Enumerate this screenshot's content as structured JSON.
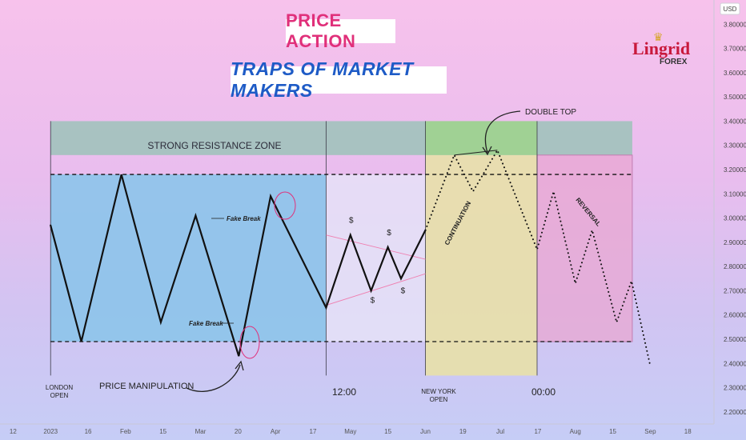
{
  "header": {
    "title": "PRICE ACTION",
    "subtitle": "TRAPS OF MARKET MAKERS"
  },
  "logo": {
    "name": "Lingrid",
    "sub": "FOREX"
  },
  "colors": {
    "resistance_zone": "#9cc3b8",
    "london_session": "#8cc4ea",
    "lunch_session": "#e6e4f8",
    "ny_session": "#e8e0a8",
    "ny_top": "#9fd48c",
    "reversal_zone": "#e8a7d2",
    "trap_circle": "#e0307a",
    "wedge": "#ef7fb0"
  },
  "annotations": {
    "resistance_zone": "STRONG RESISTANCE ZONE",
    "fake_break_top": "Fake Break",
    "fake_break_bottom": "Fake Break",
    "double_top": "DOUBLE TOP",
    "continuation": "CONTINUATION",
    "reversal": "REVERSAL",
    "price_manipulation": "PRICE MANIPULATION",
    "dollar": "$"
  },
  "sessions": {
    "london_open": [
      "LONDON",
      "OPEN"
    ],
    "midday": "12:00",
    "new_york_open": [
      "NEW YORK",
      "OPEN"
    ],
    "midnight": "00:00"
  },
  "chart_data": {
    "type": "line",
    "y_unit": "USD",
    "ylim": [
      2.15,
      3.9
    ],
    "y_ticks": [
      3.8,
      3.7,
      3.6,
      3.5,
      3.4,
      3.3,
      3.2,
      3.1,
      3.0,
      2.9,
      2.8,
      2.7,
      2.6,
      2.5,
      2.4,
      2.3,
      2.2
    ],
    "y_tick_labels": [
      "3.80000",
      "3.70000",
      "3.60000",
      "3.50000",
      "3.40000",
      "3.30000",
      "3.20000",
      "3.10000",
      "3.00000",
      "2.90000",
      "2.80000",
      "2.70000",
      "2.60000",
      "2.50000",
      "2.40000",
      "2.30000",
      "2.20000"
    ],
    "x_ticks": [
      {
        "label": "12",
        "t": 0
      },
      {
        "label": "2023",
        "t": 1
      },
      {
        "label": "16",
        "t": 2
      },
      {
        "label": "Feb",
        "t": 3
      },
      {
        "label": "15",
        "t": 4
      },
      {
        "label": "Mar",
        "t": 5
      },
      {
        "label": "20",
        "t": 6
      },
      {
        "label": "Apr",
        "t": 7
      },
      {
        "label": "17",
        "t": 8
      },
      {
        "label": "May",
        "t": 9
      },
      {
        "label": "15",
        "t": 10
      },
      {
        "label": "Jun",
        "t": 11
      },
      {
        "label": "19",
        "t": 12
      },
      {
        "label": "Jul",
        "t": 13
      },
      {
        "label": "17",
        "t": 14
      },
      {
        "label": "Aug",
        "t": 15
      },
      {
        "label": "15",
        "t": 16
      },
      {
        "label": "Sep",
        "t": 17
      },
      {
        "label": "18",
        "t": 18
      }
    ],
    "t_range": [
      -0.35,
      18.7
    ],
    "resistance_zone": {
      "t": [
        1.0,
        16.52
      ],
      "y": [
        3.26,
        3.4
      ]
    },
    "sessions": [
      {
        "t": [
          1.0,
          8.35
        ],
        "y": [
          2.49,
          3.18
        ]
      },
      {
        "t": [
          8.35,
          11.0
        ],
        "y": [
          2.49,
          3.18
        ]
      },
      {
        "t": [
          11.0,
          13.98
        ],
        "y": [
          2.35,
          3.26
        ]
      },
      {
        "t": [
          11.0,
          13.98
        ],
        "y": [
          3.26,
          3.4
        ]
      },
      {
        "t": [
          13.98,
          16.52
        ],
        "y": [
          2.49,
          3.26
        ]
      }
    ],
    "levels": [
      3.18,
      2.49
    ],
    "session_lines": [
      1.0,
      8.35,
      11.0,
      13.98
    ],
    "series": [
      {
        "style": "solid",
        "x": [
          1.0,
          1.82,
          2.89,
          3.94,
          4.87,
          6.02,
          6.87,
          8.35,
          9.0,
          9.55,
          10.0,
          10.35,
          11.0
        ],
        "y": [
          2.97,
          2.49,
          3.18,
          2.57,
          3.01,
          2.43,
          3.09,
          2.63,
          2.93,
          2.7,
          2.88,
          2.75,
          2.95
        ]
      },
      {
        "style": "dotted",
        "x": [
          11.0,
          11.77,
          12.27,
          12.92,
          13.98,
          14.42,
          15.0,
          15.45,
          16.1,
          16.5,
          17.0
        ],
        "y": [
          2.95,
          3.26,
          3.11,
          3.28,
          2.87,
          3.11,
          2.73,
          2.95,
          2.57,
          2.74,
          2.39
        ]
      }
    ],
    "wedge_lines": [
      {
        "x": [
          8.35,
          11.0
        ],
        "y": [
          2.93,
          2.83
        ]
      },
      {
        "x": [
          8.35,
          11.0
        ],
        "y": [
          2.64,
          2.77
        ]
      }
    ],
    "double_top_line": {
      "x": [
        11.77,
        12.92
      ],
      "y": [
        3.26,
        3.28
      ]
    },
    "dollars": [
      {
        "t": 9.02,
        "y": 2.98
      },
      {
        "t": 9.59,
        "y": 2.65
      },
      {
        "t": 10.03,
        "y": 2.93
      },
      {
        "t": 10.4,
        "y": 2.69
      }
    ]
  }
}
